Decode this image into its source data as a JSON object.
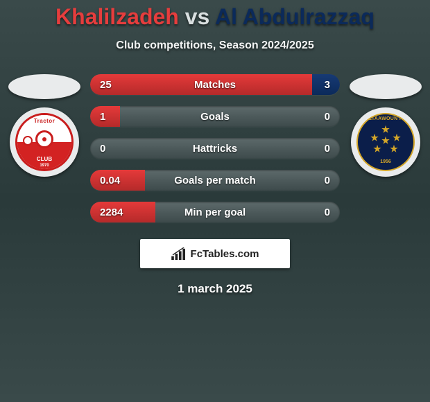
{
  "title": {
    "player1": "Khalilzadeh",
    "vs": "vs",
    "player2": "Al Abdulrazzaq"
  },
  "subtitle": "Club competitions, Season 2024/2025",
  "colors": {
    "player1": "#e53a3a",
    "player2": "#0b2a5a",
    "bar_bg": "#4d5a5b"
  },
  "club1": {
    "name": "Tractor",
    "sub": "CLUB",
    "year": "1970"
  },
  "club2": {
    "name": "ALTAAWOUN FC",
    "year": "1956"
  },
  "stats": [
    {
      "label": "Matches",
      "left_val": "25",
      "right_val": "3",
      "left_pct": 89,
      "right_pct": 11
    },
    {
      "label": "Goals",
      "left_val": "1",
      "right_val": "0",
      "left_pct": 12,
      "right_pct": 0
    },
    {
      "label": "Hattricks",
      "left_val": "0",
      "right_val": "0",
      "left_pct": 0,
      "right_pct": 0
    },
    {
      "label": "Goals per match",
      "left_val": "0.04",
      "right_val": "0",
      "left_pct": 22,
      "right_pct": 0
    },
    {
      "label": "Min per goal",
      "left_val": "2284",
      "right_val": "0",
      "left_pct": 26,
      "right_pct": 0
    }
  ],
  "attribution": "FcTables.com",
  "date": "1 march 2025"
}
